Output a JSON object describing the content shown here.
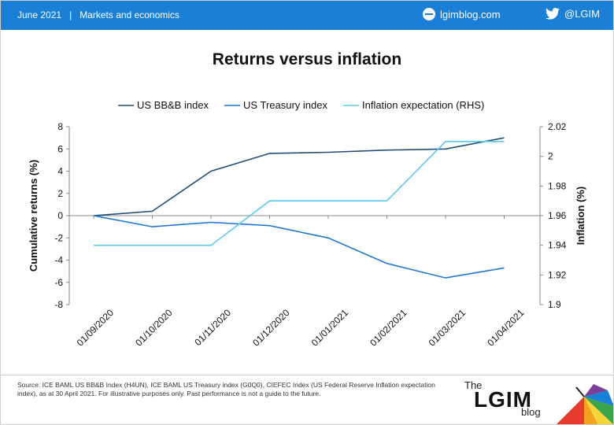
{
  "header": {
    "date": "June 2021",
    "section": "Markets and economics",
    "site": "lgimblog.com",
    "twitter": "@LGIM",
    "separator": "|"
  },
  "chart_data": {
    "type": "line",
    "title": "Returns versus inflation",
    "xlabel": "",
    "ylabel": "Cumulative returns (%)",
    "y2label": "Inflation (%)",
    "x": [
      "01/09/2020",
      "01/10/2020",
      "01/11/2020",
      "01/12/2020",
      "01/01/2021",
      "01/02/2021",
      "01/03/2021",
      "01/04/2021"
    ],
    "ylim": [
      -8,
      8
    ],
    "yticks": [
      8,
      6,
      4,
      2,
      0,
      -2,
      -4,
      -6,
      -8
    ],
    "y2lim": [
      1.9,
      2.02
    ],
    "y2ticks": [
      "2.02",
      "2",
      "1.98",
      "1.96",
      "1.94",
      "1.92",
      "1.9"
    ],
    "grid": false,
    "legend_position": "top",
    "series": [
      {
        "name": "US BB&B index",
        "axis": "left",
        "color": "#1f4e79",
        "x": [
          0,
          1,
          2,
          3,
          4,
          5,
          6,
          7
        ],
        "values": [
          0,
          0.4,
          4.0,
          5.6,
          5.7,
          5.9,
          6.0,
          7.0
        ]
      },
      {
        "name": "US Treasury index",
        "axis": "left",
        "color": "#1f77d4",
        "x": [
          0,
          1,
          2,
          3,
          4,
          5,
          6,
          7
        ],
        "values": [
          0,
          -1.0,
          -0.6,
          -0.9,
          -2.0,
          -4.3,
          -5.6,
          -4.7
        ]
      },
      {
        "name": "Inflation expectation (RHS)",
        "axis": "right",
        "color": "#5bc8f0",
        "step": true,
        "x": [
          0,
          2,
          3,
          5,
          6,
          7
        ],
        "values": [
          1.94,
          1.94,
          1.97,
          1.97,
          2.01,
          2.01
        ]
      }
    ]
  },
  "footer": {
    "source": "Source: ICE BAML US BB&B Index (H4UN), ICE BAML US Treasury index (G0Q0), CIEFEC Index (US Federal Reserve Inflation expectation index), as at 30 April 2021. For illustrative purposes only. Past performance is not a guide to the future.",
    "logo_the": "The",
    "logo_main": "LGIM",
    "logo_blog": "blog"
  }
}
